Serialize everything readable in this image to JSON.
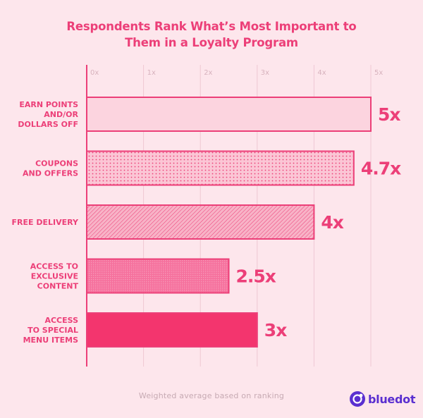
{
  "chart_data": {
    "type": "bar",
    "orientation": "horizontal",
    "title_lines": [
      "Respondents Rank What’s Most Important to",
      "Them in a Loyalty Program"
    ],
    "categories": [
      [
        "EARN POINTS",
        "AND/OR",
        "DOLLARS OFF"
      ],
      [
        "COUPONS",
        "AND OFFERS"
      ],
      [
        "FREE DELIVERY"
      ],
      [
        "ACCESS TO",
        "EXCLUSIVE",
        "CONTENT"
      ],
      [
        "ACCESS",
        "TO SPECIAL",
        "MENU ITEMS"
      ]
    ],
    "values": [
      5,
      4.7,
      4,
      2.5,
      3
    ],
    "value_labels": [
      "5x",
      "4.7x",
      "4x",
      "2.5x",
      "3x"
    ],
    "x_ticks": [
      "0x",
      "1x",
      "2x",
      "3x",
      "4x",
      "5x"
    ],
    "xlim": [
      0,
      5
    ],
    "grid": true,
    "footnote": "Weighted average based on ranking"
  },
  "brand": {
    "name": "bluedot",
    "icon": "bluedot-logo-icon",
    "color": "#5a2fd0"
  },
  "colors": {
    "background": "#fde6ec",
    "accent": "#ec3f78",
    "grid": "#efc8d3",
    "tick": "#d7b2bd",
    "bar_fills": [
      "#fcd4df",
      "#fbc6d5",
      "#f8a9c0",
      "#f6709d",
      "#f3356e"
    ]
  }
}
